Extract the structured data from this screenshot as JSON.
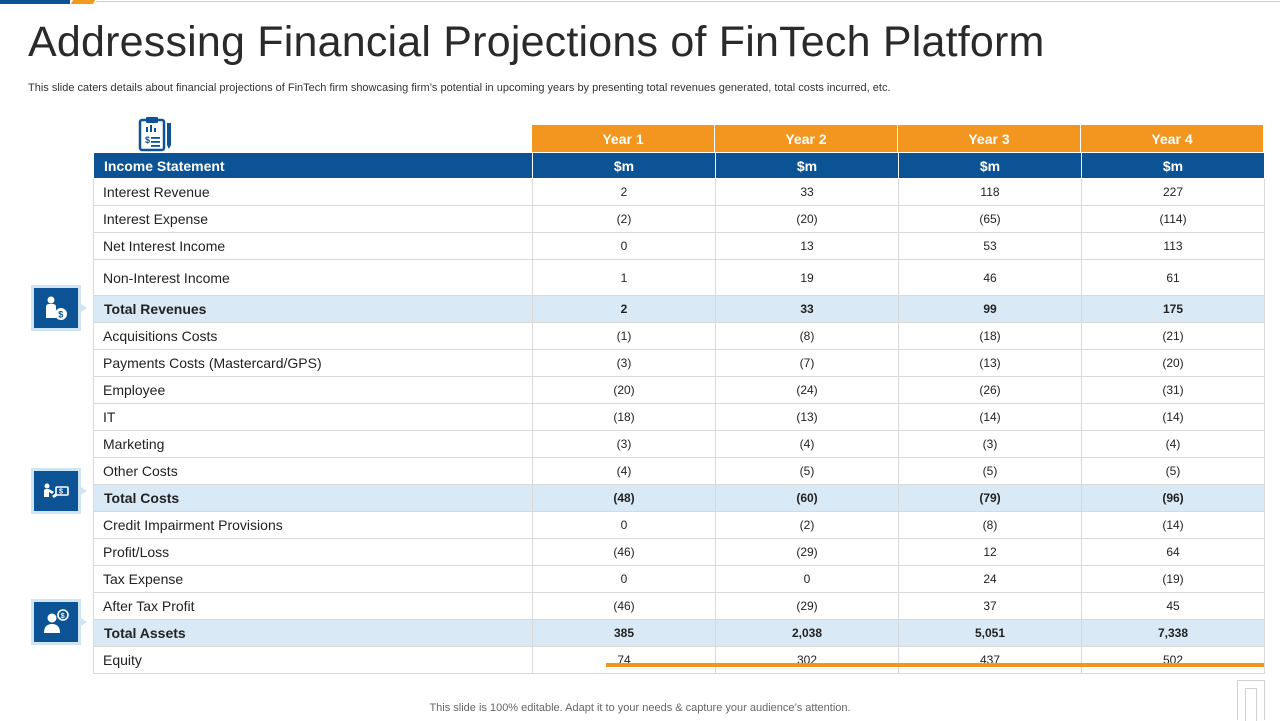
{
  "slide": {
    "title": "Addressing Financial Projections of FinTech Platform",
    "subtitle": "This slide caters details about financial projections of FinTech firm showcasing firm’s potential in upcoming years by presenting total revenues generated, total costs incurred, etc.",
    "footer": "This slide is 100% editable. Adapt it to your needs & capture your audience’s attention."
  },
  "icons": {
    "table_header": "clipboard-report-icon",
    "revenues": "person-money-bag-icon",
    "costs": "handshake-dollar-icon",
    "assets": "user-dollar-icon"
  },
  "colors": {
    "blue": "#0b5394",
    "orange": "#f3961f",
    "total_row": "#d9eaf6"
  },
  "table": {
    "years": [
      "Year 1",
      "Year 2",
      "Year 3",
      "Year 4"
    ],
    "header": {
      "label": "Income Statement",
      "units": [
        "$m",
        "$m",
        "$m",
        "$m"
      ]
    },
    "rows": [
      {
        "label": "Interest Revenue",
        "values": [
          "2",
          "33",
          "118",
          "227"
        ]
      },
      {
        "label": "Interest  Expense",
        "values": [
          "(2)",
          "(20)",
          "(65)",
          "(114)"
        ]
      },
      {
        "label": "Net Interest Income",
        "values": [
          "0",
          "13",
          "53",
          "113"
        ]
      },
      {
        "label": "Non-Interest Income",
        "values": [
          "1",
          "19",
          "46",
          "61"
        ]
      },
      {
        "label": "Total Revenues",
        "values": [
          "2",
          "33",
          "99",
          "175"
        ]
      },
      {
        "label": "Acquisitions Costs",
        "values": [
          "(1)",
          "(8)",
          "(18)",
          "(21)"
        ]
      },
      {
        "label": "Payments Costs (Mastercard/GPS)",
        "values": [
          "(3)",
          "(7)",
          "(13)",
          "(20)"
        ]
      },
      {
        "label": "Employee",
        "values": [
          "(20)",
          "(24)",
          "(26)",
          "(31)"
        ]
      },
      {
        "label": "IT",
        "values": [
          "(18)",
          "(13)",
          "(14)",
          "(14)"
        ]
      },
      {
        "label": "Marketing",
        "values": [
          "(3)",
          "(4)",
          "(3)",
          "(4)"
        ]
      },
      {
        "label": "Other Costs",
        "values": [
          "(4)",
          "(5)",
          "(5)",
          "(5)"
        ]
      },
      {
        "label": "Total Costs",
        "values": [
          "(48)",
          "(60)",
          "(79)",
          "(96)"
        ]
      },
      {
        "label": "Credit Impairment Provisions",
        "values": [
          "0",
          "(2)",
          "(8)",
          "(14)"
        ]
      },
      {
        "label": "Profit/Loss",
        "values": [
          "(46)",
          "(29)",
          "12",
          "64"
        ]
      },
      {
        "label": "Tax Expense",
        "values": [
          "0",
          "0",
          "24",
          "(19)"
        ]
      },
      {
        "label": "After Tax Profit",
        "values": [
          "(46)",
          "(29)",
          "37",
          "45"
        ]
      },
      {
        "label": "Total Assets",
        "values": [
          "385",
          "2,038",
          "5,051",
          "7,338"
        ]
      },
      {
        "label": "Equity",
        "values": [
          "74",
          "302",
          "437",
          "502"
        ]
      }
    ]
  }
}
